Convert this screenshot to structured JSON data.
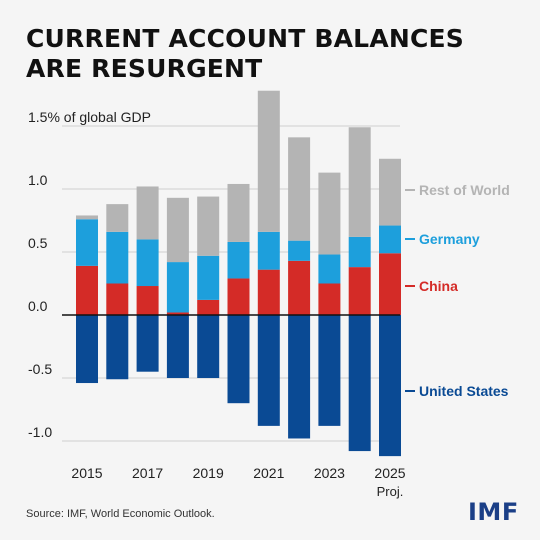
{
  "title_lines": [
    "CURRENT ACCOUNT BALANCES",
    "ARE RESURGENT"
  ],
  "source": "Source: IMF, World Economic Outlook.",
  "logo": "IMF",
  "chart_data": {
    "type": "bar",
    "stacked": true,
    "categories": [
      "2015",
      "2016",
      "2017",
      "2018",
      "2019",
      "2020",
      "2021",
      "2022",
      "2023",
      "2024",
      "2025"
    ],
    "x_tick_labels": [
      {
        "category": "2015",
        "label": "2015"
      },
      {
        "category": "2017",
        "label": "2017"
      },
      {
        "category": "2019",
        "label": "2019"
      },
      {
        "category": "2021",
        "label": "2021"
      },
      {
        "category": "2023",
        "label": "2023"
      },
      {
        "category": "2025",
        "label": "2025",
        "sublabel": "Proj."
      }
    ],
    "ylim": [
      -1.1,
      1.75
    ],
    "y_ticks": [
      {
        "value": 1.5,
        "label": "1.5% of global GDP"
      },
      {
        "value": 1.0,
        "label": "1.0"
      },
      {
        "value": 0.5,
        "label": "0.5"
      },
      {
        "value": 0.0,
        "label": "0.0"
      },
      {
        "value": -0.5,
        "label": "-0.5"
      },
      {
        "value": -1.0,
        "label": "-1.0"
      }
    ],
    "grid": true,
    "legend_placement": "right, labels next to last bar",
    "series": [
      {
        "name": "China",
        "color": "#d42b27",
        "values": [
          0.39,
          0.25,
          0.23,
          0.02,
          0.12,
          0.29,
          0.36,
          0.43,
          0.25,
          0.38,
          0.49
        ]
      },
      {
        "name": "Germany",
        "color": "#1d9fdc",
        "values": [
          0.37,
          0.41,
          0.37,
          0.4,
          0.35,
          0.29,
          0.3,
          0.16,
          0.23,
          0.24,
          0.22
        ]
      },
      {
        "name": "Rest of World",
        "color": "#b4b4b4",
        "values": [
          0.03,
          0.22,
          0.42,
          0.51,
          0.47,
          0.46,
          1.12,
          0.82,
          0.65,
          0.87,
          0.53
        ]
      },
      {
        "name": "United States",
        "color": "#0a4a94",
        "values": [
          -0.54,
          -0.51,
          -0.45,
          -0.5,
          -0.5,
          -0.7,
          -0.88,
          -0.98,
          -0.88,
          -1.08,
          -1.12
        ]
      }
    ]
  }
}
